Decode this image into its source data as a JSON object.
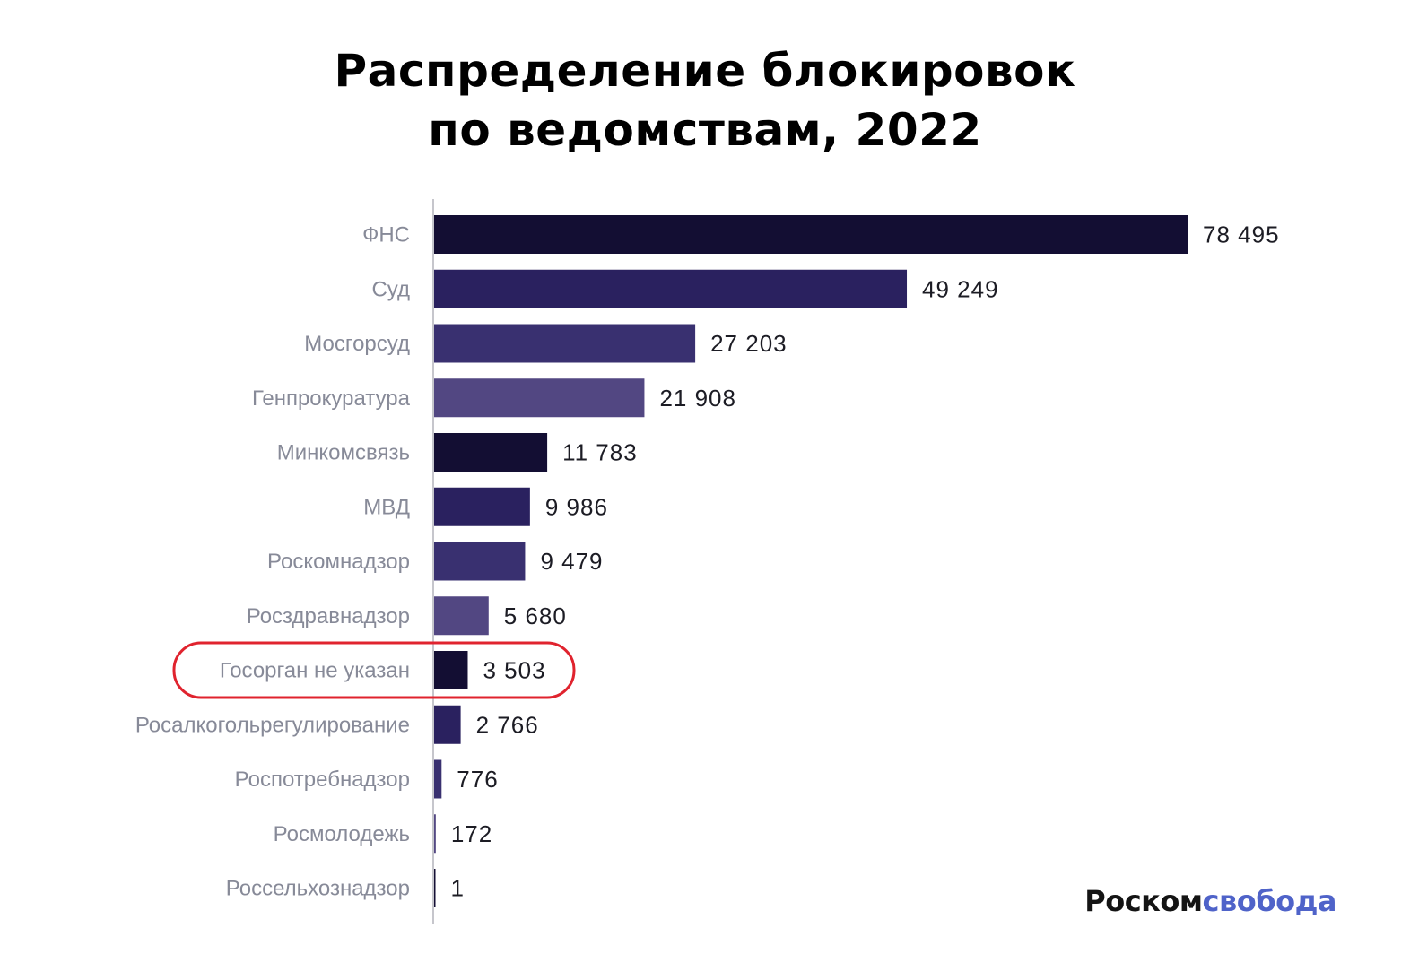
{
  "title": [
    "Распределение блокировок",
    "по ведомствам, 2022"
  ],
  "brand": {
    "part1": "Роском",
    "part2": "свобода",
    "color1": "#141414",
    "color2": "#4f63c9"
  },
  "highlight": {
    "category": "Госорган не указан",
    "color": "#e0232e"
  },
  "colors": {
    "palette": [
      "#130e33",
      "#2a215f",
      "#393070",
      "#524782"
    ],
    "label": "#878a98",
    "value": "#1c1c24",
    "axis": "#c6c6cc"
  },
  "chart_data": {
    "type": "bar",
    "orientation": "horizontal",
    "categories": [
      "ФНС",
      "Суд",
      "Мосгорсуд",
      "Генпрокуратура",
      "Минкомсвязь",
      "МВД",
      "Роскомнадзор",
      "Росздравнадзор",
      "Госорган не указан",
      "Росалкогольрегулирование",
      "Роспотребнадзор",
      "Росмолодежь",
      "Россельхознадзор"
    ],
    "values": [
      78495,
      49249,
      27203,
      21908,
      11783,
      9986,
      9479,
      5680,
      3503,
      2766,
      776,
      172,
      1
    ],
    "value_labels": [
      "78 495",
      "49 249",
      "27 203",
      "21 908",
      "11 783",
      "9 986",
      "9 479",
      "5 680",
      "3 503",
      "2 766",
      "776",
      "172",
      "1"
    ],
    "title": "Распределение блокировок по ведомствам, 2022",
    "xlabel": "",
    "ylabel": "",
    "xlim": [
      0,
      78495
    ],
    "grid": false
  }
}
